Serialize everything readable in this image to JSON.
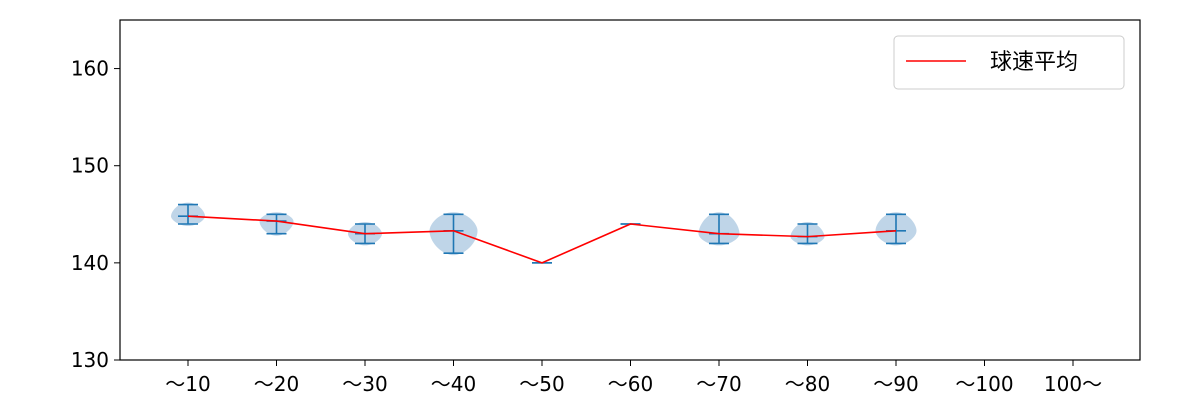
{
  "chart_data": {
    "type": "violin",
    "categories": [
      "～10",
      "～20",
      "～30",
      "～40",
      "～50",
      "～60",
      "～70",
      "～80",
      "～90",
      "～100",
      "100～"
    ],
    "ylim": [
      130,
      165
    ],
    "yticks": [
      130,
      140,
      150,
      160
    ],
    "grid": false,
    "legend": {
      "position": "top-right",
      "entries": [
        {
          "label": "球速平均",
          "color": "#ff0000"
        }
      ]
    },
    "series": [
      {
        "name": "球速平均",
        "type": "line",
        "color": "#ff0000",
        "values": [
          144.8,
          144.3,
          143.0,
          143.3,
          140.0,
          144.0,
          143.0,
          142.7,
          143.3,
          null,
          null
        ]
      }
    ],
    "distributions": [
      {
        "category": "～10",
        "min": 144,
        "max": 146,
        "mean": 144.8
      },
      {
        "category": "～20",
        "min": 143,
        "max": 145,
        "mean": 144.3
      },
      {
        "category": "～30",
        "min": 142,
        "max": 144,
        "mean": 143.0
      },
      {
        "category": "～40",
        "min": 141,
        "max": 145,
        "mean": 143.3
      },
      {
        "category": "～50",
        "min": 140,
        "max": 140,
        "mean": 140.0
      },
      {
        "category": "～60",
        "min": 144,
        "max": 144,
        "mean": 144.0
      },
      {
        "category": "～70",
        "min": 142,
        "max": 145,
        "mean": 143.0
      },
      {
        "category": "～80",
        "min": 142,
        "max": 144,
        "mean": 142.7
      },
      {
        "category": "～90",
        "min": 142,
        "max": 145,
        "mean": 143.3
      },
      {
        "category": "～100",
        "min": null,
        "max": null,
        "mean": null
      },
      {
        "category": "100～",
        "min": null,
        "max": null,
        "mean": null
      }
    ],
    "violin_color": "#1f77b4",
    "violin_fill": "#a9c7e0",
    "line_color": "#ff0000"
  }
}
